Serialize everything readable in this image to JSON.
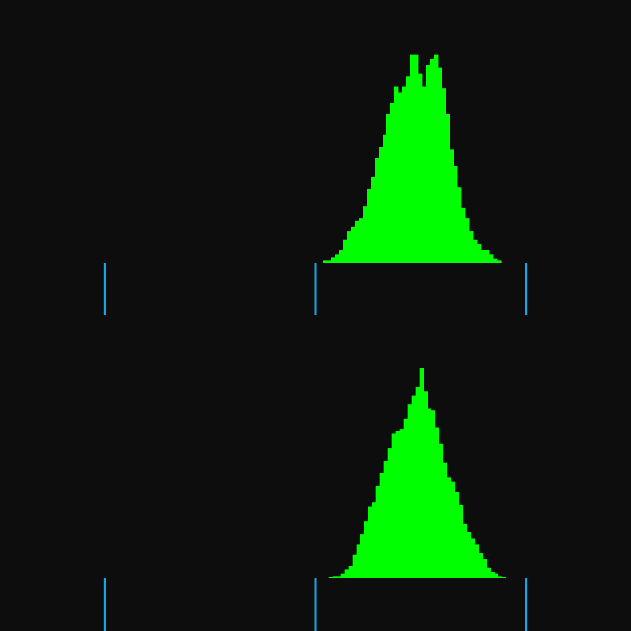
{
  "colors": {
    "background": "#0d0d0d",
    "bars": "#00ff00",
    "ticks": "#1aa3e6"
  },
  "chart_data": [
    {
      "type": "bar",
      "title": "",
      "xlabel": "",
      "ylabel": "",
      "xlim": [
        -1.5,
        1.5
      ],
      "ylim": [
        0,
        1
      ],
      "grid": false,
      "x_ticks": [
        -1,
        0,
        1
      ],
      "bin_start": 0.0375,
      "bin_width": 0.01875,
      "values": [
        0.01,
        0.01,
        0.025,
        0.04,
        0.06,
        0.11,
        0.15,
        0.17,
        0.2,
        0.21,
        0.27,
        0.35,
        0.41,
        0.5,
        0.55,
        0.61,
        0.71,
        0.76,
        0.84,
        0.81,
        0.84,
        0.89,
        0.99,
        0.99,
        0.9,
        0.84,
        0.94,
        0.97,
        0.99,
        0.93,
        0.83,
        0.71,
        0.54,
        0.46,
        0.36,
        0.26,
        0.21,
        0.15,
        0.11,
        0.09,
        0.06,
        0.06,
        0.04,
        0.02,
        0.01
      ]
    },
    {
      "type": "bar",
      "title": "",
      "xlabel": "",
      "ylabel": "",
      "xlim": [
        -1.5,
        1.5
      ],
      "ylim": [
        0,
        1
      ],
      "grid": false,
      "x_ticks": [
        -1,
        0,
        1
      ],
      "bin_start": 0.0625,
      "bin_width": 0.01875,
      "values": [
        0.004,
        0.01,
        0.01,
        0.02,
        0.04,
        0.06,
        0.11,
        0.16,
        0.21,
        0.27,
        0.34,
        0.36,
        0.44,
        0.5,
        0.56,
        0.62,
        0.69,
        0.7,
        0.71,
        0.76,
        0.83,
        0.87,
        0.91,
        1.0,
        0.89,
        0.81,
        0.8,
        0.72,
        0.64,
        0.55,
        0.48,
        0.46,
        0.41,
        0.35,
        0.26,
        0.22,
        0.19,
        0.16,
        0.12,
        0.09,
        0.05,
        0.03,
        0.02,
        0.01,
        0.005
      ]
    }
  ]
}
